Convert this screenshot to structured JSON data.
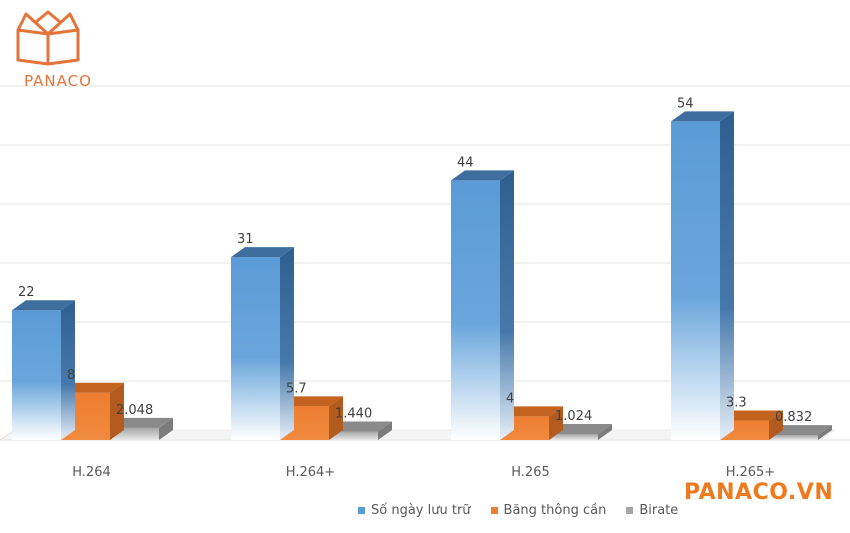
{
  "brand": {
    "logo_text": "PANACO",
    "watermark": "PANACO.VN",
    "color": "#e5743a"
  },
  "chart_data": {
    "type": "bar",
    "style": "3d-clustered",
    "title": "",
    "xlabel": "",
    "ylabel": "",
    "categories": [
      "H.264",
      "H.264+",
      "H.265",
      "H.265+"
    ],
    "series": [
      {
        "name": "Số ngày lưu trữ",
        "values": [
          22,
          31,
          44,
          54
        ],
        "labels": [
          "22",
          "31",
          "44",
          "54"
        ],
        "color": "#5b9bd5"
      },
      {
        "name": "Băng thông cần",
        "values": [
          8,
          5.7,
          4,
          3.3
        ],
        "labels": [
          "8",
          "5.7",
          "4",
          "3.3"
        ],
        "color": "#ed7d31"
      },
      {
        "name": "Birate",
        "values": [
          2.048,
          1.44,
          1.024,
          0.832
        ],
        "labels": [
          "2.048",
          "1.440",
          "1.024",
          "0.832"
        ],
        "color": "#a5a5a5"
      }
    ],
    "ylim": [
      0,
      55
    ],
    "grid": true,
    "legend_position": "bottom"
  }
}
